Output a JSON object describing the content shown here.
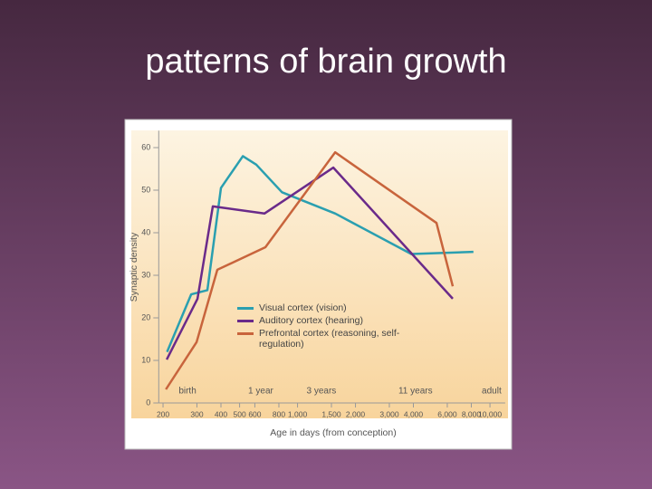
{
  "title": "patterns of brain growth",
  "chart_data": {
    "type": "line",
    "xlabel": "Age in days (from conception)",
    "ylabel": "Synaptic density",
    "xscale": "log",
    "xlim": [
      190,
      12000
    ],
    "ylim": [
      0,
      64
    ],
    "xticks": [
      200,
      300,
      400,
      500,
      600,
      800,
      {
        "value": 1000,
        "label": "1,000"
      },
      {
        "value": 1500,
        "label": "1,500"
      },
      {
        "value": 2000,
        "label": "2,000"
      },
      {
        "value": 3000,
        "label": "3,000"
      },
      {
        "value": 4000,
        "label": "4,000"
      },
      {
        "value": 6000,
        "label": "6,000"
      },
      {
        "value": 8000,
        "label": "8,000"
      },
      {
        "value": 10000,
        "label": "10,000"
      }
    ],
    "yticks": [
      0,
      10,
      20,
      30,
      40,
      50,
      60
    ],
    "grid": false,
    "annotations": [
      {
        "text": "birth",
        "x": 268
      },
      {
        "text": "1 year",
        "x": 644
      },
      {
        "text": "3 years",
        "x": 1330
      },
      {
        "text": "11 years",
        "x": 4100
      },
      {
        "text": "adult",
        "x": 10200
      }
    ],
    "series": [
      {
        "name": "Visual cortex (vision)",
        "color": "#2a9fb0",
        "x": [
          210,
          280,
          340,
          400,
          520,
          610,
          830,
          1570,
          3900,
          8200
        ],
        "values": [
          12,
          25.5,
          26.5,
          50.5,
          58,
          56,
          49.5,
          44.5,
          35,
          35.5
        ]
      },
      {
        "name": "Auditory cortex (hearing)",
        "color": "#6a2a8a",
        "x": [
          209,
          302,
          363,
          673,
          1534,
          6410
        ],
        "values": [
          10.2,
          24.5,
          46.2,
          44.5,
          55.3,
          24.5
        ]
      },
      {
        "name": "Prefrontal cortex (reasoning, self-regulation)",
        "color": "#c8643c",
        "x": [
          207,
          299,
          383,
          681,
          1568,
          5272,
          6410
        ],
        "values": [
          3.2,
          14.3,
          31.3,
          36.6,
          58.9,
          42.3,
          27.4
        ]
      }
    ]
  }
}
